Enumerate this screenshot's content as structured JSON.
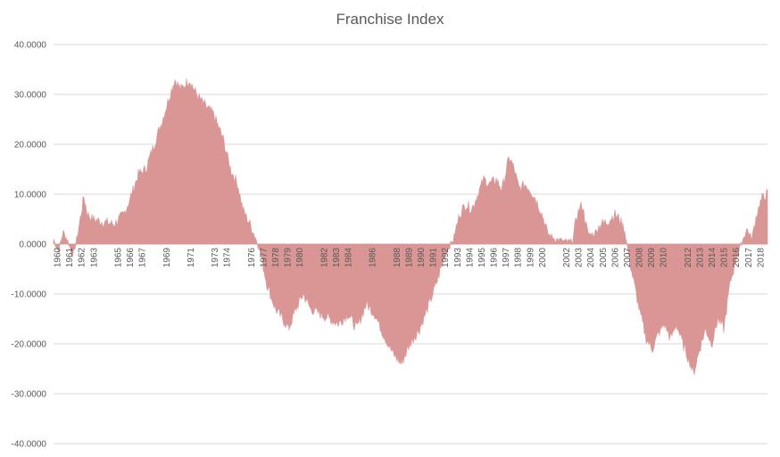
{
  "chart_data": {
    "type": "area",
    "title": "Franchise Index",
    "xlabel": "",
    "ylabel": "",
    "ylim": [
      -40,
      40
    ],
    "y_ticks": [
      "40.0000",
      "30.0000",
      "20.0000",
      "10.0000",
      "0.0000",
      "-10.0000",
      "-20.0000",
      "-30.0000",
      "-40.0000"
    ],
    "x_ticks": [
      "1960",
      "1961",
      "1962",
      "1963",
      "1965",
      "1966",
      "1967",
      "1969",
      "1971",
      "1973",
      "1974",
      "1976",
      "1977",
      "1978",
      "1979",
      "1980",
      "1982",
      "1983",
      "1984",
      "1986",
      "1988",
      "1989",
      "1990",
      "1991",
      "1992",
      "1993",
      "1994",
      "1995",
      "1996",
      "1997",
      "1998",
      "1999",
      "2000",
      "2002",
      "2003",
      "2004",
      "2005",
      "2006",
      "2007",
      "2008",
      "2009",
      "2010",
      "2012",
      "2013",
      "2014",
      "2015",
      "2016",
      "2017",
      "2018"
    ],
    "grid": true,
    "legend": "none",
    "color": "#d99694",
    "series": [
      {
        "points": [
          [
            "1960.0",
            1.0
          ],
          [
            "1960.4",
            -1.5
          ],
          [
            "1960.8",
            2.5
          ],
          [
            "1961.2",
            0.5
          ],
          [
            "1961.6",
            -2.5
          ],
          [
            "1962.0",
            2.0
          ],
          [
            "1962.5",
            9.5
          ],
          [
            "1962.8",
            6.0
          ],
          [
            "1963.2",
            5.0
          ],
          [
            "1964.0",
            4.5
          ],
          [
            "1965.0",
            4.0
          ],
          [
            "1965.8",
            6.0
          ],
          [
            "1966.3",
            9.0
          ],
          [
            "1967.0",
            14.0
          ],
          [
            "1967.6",
            15.0
          ],
          [
            "1968.3",
            20.0
          ],
          [
            "1969.0",
            25.0
          ],
          [
            "1969.6",
            30.0
          ],
          [
            "1970.0",
            33.0
          ],
          [
            "1970.5",
            31.0
          ],
          [
            "1971.2",
            33.0
          ],
          [
            "1971.8",
            30.0
          ],
          [
            "1972.4",
            28.0
          ],
          [
            "1973.2",
            26.0
          ],
          [
            "1974.0",
            21.0
          ],
          [
            "1974.6",
            15.0
          ],
          [
            "1975.2",
            12.0
          ],
          [
            "1975.6",
            7.0
          ],
          [
            "1976.2",
            4.0
          ],
          [
            "1976.7",
            1.0
          ],
          [
            "1977.0",
            -1.0
          ],
          [
            "1977.6",
            -8.0
          ],
          [
            "1978.3",
            -13.0
          ],
          [
            "1978.9",
            -15.0
          ],
          [
            "1979.4",
            -17.0
          ],
          [
            "1980.0",
            -13.0
          ],
          [
            "1980.6",
            -10.0
          ],
          [
            "1981.2",
            -13.0
          ],
          [
            "1982.0",
            -14.0
          ],
          [
            "1982.8",
            -15.0
          ],
          [
            "1983.5",
            -16.0
          ],
          [
            "1984.3",
            -14.0
          ],
          [
            "1985.0",
            -17.0
          ],
          [
            "1985.8",
            -12.0
          ],
          [
            "1986.5",
            -14.0
          ],
          [
            "1987.2",
            -18.0
          ],
          [
            "1988.0",
            -22.0
          ],
          [
            "1988.7",
            -24.0
          ],
          [
            "1989.4",
            -20.0
          ],
          [
            "1990.2",
            -17.0
          ],
          [
            "1991.0",
            -12.0
          ],
          [
            "1991.7",
            -7.0
          ],
          [
            "1992.3",
            -2.0
          ],
          [
            "1993.0",
            1.0
          ],
          [
            "1993.5",
            6.0
          ],
          [
            "1994.0",
            8.0
          ],
          [
            "1994.5",
            7.0
          ],
          [
            "1995.0",
            10.0
          ],
          [
            "1995.5",
            13.0
          ],
          [
            "1996.0",
            12.0
          ],
          [
            "1996.5",
            13.0
          ],
          [
            "1997.0",
            11.0
          ],
          [
            "1997.6",
            17.5
          ],
          [
            "1998.0",
            15.0
          ],
          [
            "1998.4",
            11.0
          ],
          [
            "1998.9",
            12.0
          ],
          [
            "1999.3",
            11.0
          ],
          [
            "1999.8",
            9.0
          ],
          [
            "2000.3",
            6.0
          ],
          [
            "2000.8",
            2.0
          ],
          [
            "2001.4",
            1.0
          ],
          [
            "2002.2",
            0.5
          ],
          [
            "2002.8",
            0.5
          ],
          [
            "2003.2",
            6.0
          ],
          [
            "2003.6",
            8.0
          ],
          [
            "2004.1",
            2.0
          ],
          [
            "2004.6",
            2.0
          ],
          [
            "2005.1",
            4.0
          ],
          [
            "2005.7",
            4.5
          ],
          [
            "2006.3",
            6.0
          ],
          [
            "2006.7",
            5.0
          ],
          [
            "2007.1",
            3.0
          ],
          [
            "2007.5",
            -3.0
          ],
          [
            "2007.9",
            -8.0
          ],
          [
            "2008.4",
            -14.0
          ],
          [
            "2008.9",
            -19.0
          ],
          [
            "2009.4",
            -21.0
          ],
          [
            "2009.9",
            -18.0
          ],
          [
            "2010.4",
            -16.0
          ],
          [
            "2010.9",
            -19.0
          ],
          [
            "2011.4",
            -16.0
          ],
          [
            "2011.9",
            -20.0
          ],
          [
            "2012.4",
            -23.0
          ],
          [
            "2012.8",
            -26.0
          ],
          [
            "2013.3",
            -21.0
          ],
          [
            "2013.8",
            -17.0
          ],
          [
            "2014.3",
            -20.0
          ],
          [
            "2014.8",
            -15.0
          ],
          [
            "2015.3",
            -17.0
          ],
          [
            "2015.8",
            -8.0
          ],
          [
            "2016.3",
            -3.0
          ],
          [
            "2016.8",
            0.5
          ],
          [
            "2017.2",
            3.0
          ],
          [
            "2017.6",
            1.0
          ],
          [
            "2018.0",
            6.0
          ],
          [
            "2018.4",
            9.0
          ],
          [
            "2018.8",
            10.0
          ]
        ]
      }
    ]
  }
}
